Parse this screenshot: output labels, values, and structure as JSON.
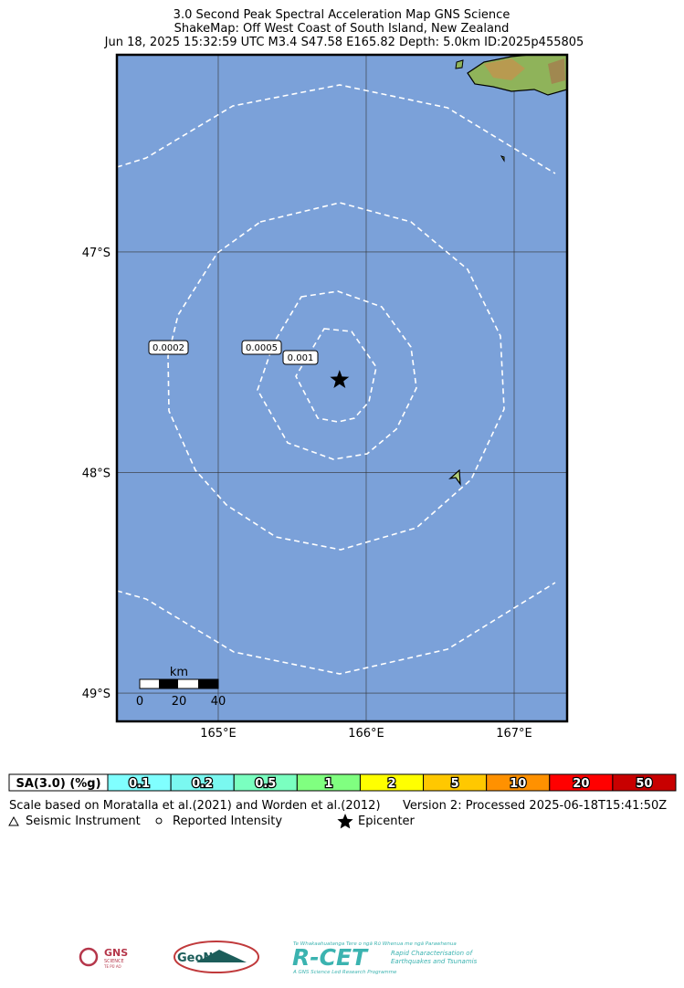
{
  "title": [
    "3.0 Second Peak Spectral Acceleration Map GNS Science",
    "ShakeMap: Off West Coast of South Island, New Zealand",
    "Jun 18, 2025 15:32:59 UTC M3.4 S47.58 E165.82 Depth: 5.0km ID:2025p455805"
  ],
  "map": {
    "xlim": [
      164.315,
      167.358
    ],
    "ylim": [
      -49.128,
      -46.106
    ],
    "xticks": [
      {
        "value": 165,
        "label": "165°E"
      },
      {
        "value": 166,
        "label": "166°E"
      },
      {
        "value": 167,
        "label": "167°E"
      }
    ],
    "yticks": [
      {
        "value": -47,
        "label": "47°S"
      },
      {
        "value": -48,
        "label": "48°S"
      },
      {
        "value": -49,
        "label": "49°S"
      }
    ],
    "grid": true,
    "ocean_color": "#7ba1d9",
    "epicenter": {
      "lon": 165.82,
      "lat": -47.58
    },
    "contour_labels": [
      "0.0002",
      "0.0005",
      "0.001"
    ],
    "scale_bar": {
      "unit": "km",
      "ticks": [
        "0",
        "20",
        "40"
      ]
    }
  },
  "legend": {
    "header": "SA(3.0) (%g)",
    "bins": [
      {
        "label": "0.1",
        "color": "#80ffff"
      },
      {
        "label": "0.2",
        "color": "#7af8f0"
      },
      {
        "label": "0.5",
        "color": "#7affc0"
      },
      {
        "label": "1",
        "color": "#80ff80"
      },
      {
        "label": "2",
        "color": "#ffff00"
      },
      {
        "label": "5",
        "color": "#ffc800"
      },
      {
        "label": "10",
        "color": "#ff9100"
      },
      {
        "label": "20",
        "color": "#ff0000"
      },
      {
        "label": "50",
        "color": "#c80000"
      }
    ]
  },
  "notes": [
    "Scale based on Moratalla et al.(2021) and Worden et al.(2012)",
    "Version 2: Processed 2025-06-18T15:41:50Z"
  ],
  "symbols": [
    "Seismic Instrument",
    "Reported Intensity",
    "Epicenter"
  ],
  "logos": {
    "gns": "GNS",
    "gns_sub": "SCIENCE",
    "gns_maori": "TE PŪ AO",
    "geonet": "GeoNet",
    "rcet": "R-CET",
    "rcet_top": "Te Whakaahuatanga Tere o ngā Rū Whenua me ngā Parawhenua",
    "rcet_line1": "Rapid Characterisation of",
    "rcet_line2": "Earthquakes and Tsunamis",
    "rcet_bottom": "A GNS Science Led Research Programme"
  }
}
